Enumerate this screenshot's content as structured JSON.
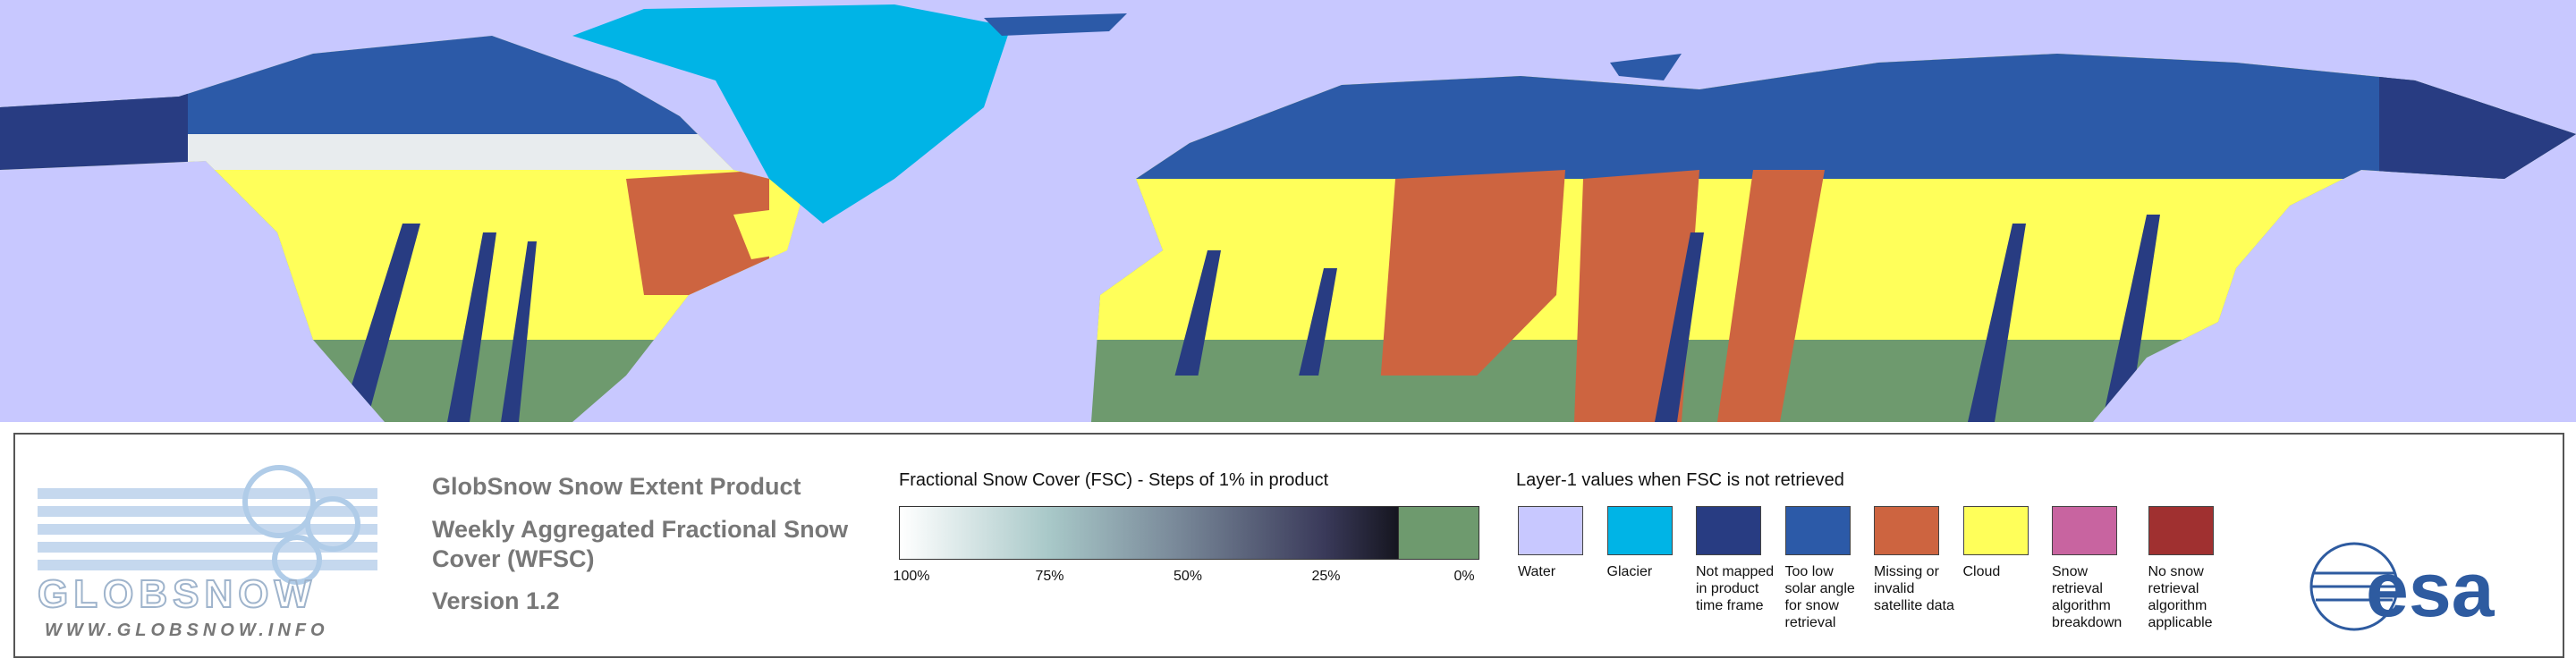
{
  "logo": {
    "name": "GLOBSNOW",
    "url": "WWW.GLOBSNOW.INFO"
  },
  "header": {
    "title": "GlobSnow Snow Extent Product",
    "subtitle": "Weekly Aggregated Fractional Snow Cover (WFSC)",
    "version": "Version 1.2"
  },
  "colorbar": {
    "title": "Fractional Snow Cover (FSC) - Steps of 1% in product",
    "ticks": [
      {
        "value": 100,
        "label": "100%"
      },
      {
        "value": 75,
        "label": "75%"
      },
      {
        "value": 50,
        "label": "50%"
      },
      {
        "value": 25,
        "label": "25%"
      },
      {
        "value": 0,
        "label": "0%"
      }
    ]
  },
  "layer1": {
    "title": "Layer-1 values when FSC is not retrieved",
    "items": [
      {
        "label": "Water",
        "color": "#c8c8ff"
      },
      {
        "label": "Glacier",
        "color": "#00b4e6"
      },
      {
        "label": "Not mapped in product time frame",
        "color": "#283c82"
      },
      {
        "label": "Too low solar angle for snow retrieval",
        "color": "#2c5aa8"
      },
      {
        "label": "Missing or invalid satellite data",
        "color": "#cd6440"
      },
      {
        "label": "Cloud",
        "color": "#ffff5a"
      },
      {
        "label": "Snow retrieval algorithm breakdown",
        "color": "#c864a0"
      },
      {
        "label": "No snow retrieval algorithm applicable",
        "color": "#a03030"
      }
    ]
  },
  "esa": "esa"
}
